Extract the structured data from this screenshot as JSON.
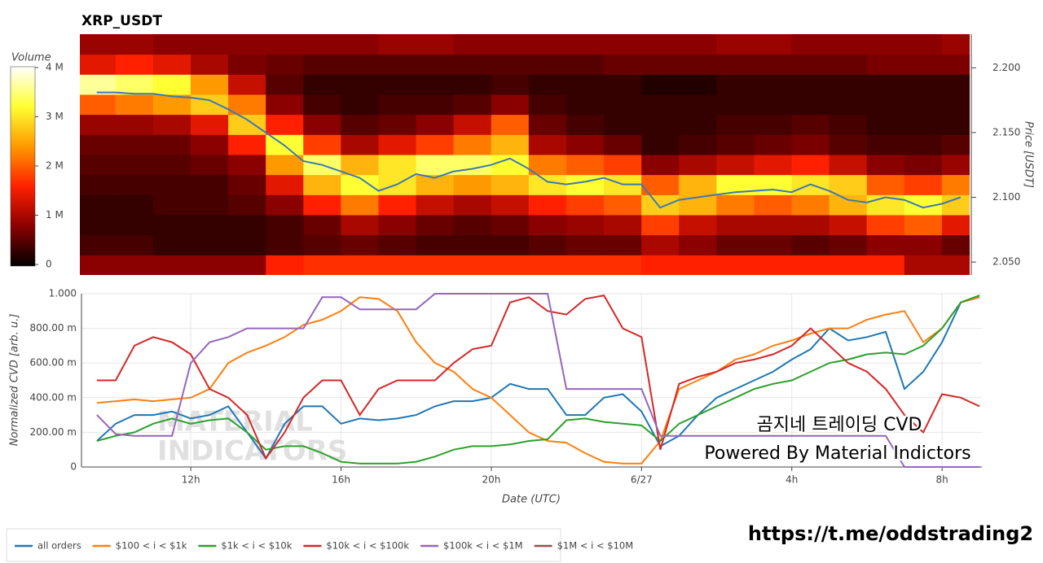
{
  "chart_data": [
    {
      "type": "heatmap",
      "title": "XRP_USDT",
      "x_bins": [
        9,
        10,
        11,
        12,
        13,
        14,
        15,
        16,
        17,
        18,
        19,
        20,
        21,
        22,
        23,
        24,
        25,
        26,
        27,
        28,
        29,
        30,
        31,
        32,
        33
      ],
      "y_bins": [
        2.04,
        2.0555,
        2.071,
        2.0865,
        2.102,
        2.1175,
        2.133,
        2.1485,
        2.164,
        2.1795,
        2.195,
        2.2105,
        2.226
      ],
      "z": [
        [
          0.8,
          0.8,
          0.8,
          0.8,
          0.8,
          1.6,
          1.7,
          1.7,
          1.7,
          1.7,
          1.7,
          1.7,
          1.7,
          1.7,
          1.7,
          1.6,
          1.6,
          1.6,
          1.6,
          1.6,
          1.6,
          1.6,
          1.0,
          1.0
        ],
        [
          0.4,
          0.4,
          0.3,
          0.3,
          0.3,
          0.4,
          0.5,
          0.6,
          0.5,
          0.4,
          0.4,
          0.4,
          0.5,
          0.6,
          0.6,
          1.0,
          0.8,
          0.6,
          0.6,
          0.5,
          0.6,
          0.8,
          0.8,
          0.6
        ],
        [
          0.3,
          0.3,
          0.3,
          0.3,
          0.3,
          0.4,
          0.6,
          1.0,
          0.8,
          0.6,
          0.5,
          0.6,
          0.8,
          0.9,
          1.0,
          1.8,
          1.2,
          1.0,
          1.0,
          1.0,
          1.2,
          1.8,
          2.0,
          1.4
        ],
        [
          0.3,
          0.3,
          0.4,
          0.4,
          0.5,
          0.8,
          1.6,
          2.2,
          1.6,
          1.2,
          1.0,
          1.2,
          1.6,
          1.8,
          2.0,
          2.8,
          2.6,
          2.2,
          2.0,
          2.2,
          2.6,
          3.0,
          3.2,
          2.8
        ],
        [
          0.4,
          0.4,
          0.4,
          0.4,
          0.6,
          1.4,
          2.6,
          3.2,
          3.0,
          2.6,
          2.4,
          2.6,
          3.0,
          3.2,
          3.0,
          2.0,
          2.6,
          3.2,
          3.2,
          3.0,
          2.8,
          2.0,
          1.8,
          2.2
        ],
        [
          0.5,
          0.5,
          0.5,
          0.6,
          0.8,
          2.4,
          3.4,
          2.6,
          3.0,
          3.4,
          3.4,
          3.2,
          2.2,
          2.0,
          1.8,
          0.8,
          1.0,
          1.2,
          1.4,
          1.6,
          1.2,
          0.8,
          0.7,
          0.9
        ],
        [
          0.6,
          0.6,
          0.6,
          0.8,
          1.6,
          3.2,
          1.8,
          1.0,
          1.4,
          1.8,
          2.2,
          2.6,
          1.0,
          0.8,
          0.6,
          0.3,
          0.4,
          0.5,
          0.6,
          0.7,
          0.5,
          0.4,
          0.4,
          0.5
        ],
        [
          0.9,
          0.9,
          1.0,
          1.4,
          2.8,
          1.6,
          0.8,
          0.5,
          0.6,
          0.8,
          1.2,
          2.0,
          0.6,
          0.4,
          0.3,
          0.3,
          0.3,
          0.4,
          0.4,
          0.5,
          0.4,
          0.3,
          0.3,
          0.3
        ],
        [
          2.0,
          2.2,
          2.4,
          2.8,
          2.2,
          0.8,
          0.4,
          0.3,
          0.4,
          0.4,
          0.5,
          0.8,
          0.4,
          0.3,
          0.3,
          0.3,
          0.3,
          0.3,
          0.3,
          0.3,
          0.3,
          0.3,
          0.3,
          0.3
        ],
        [
          3.6,
          3.4,
          3.2,
          2.4,
          1.2,
          0.5,
          0.3,
          0.3,
          0.3,
          0.3,
          0.3,
          0.4,
          0.3,
          0.3,
          0.3,
          0.2,
          0.2,
          0.3,
          0.3,
          0.3,
          0.3,
          0.3,
          0.3,
          0.3
        ],
        [
          1.4,
          1.6,
          1.4,
          1.0,
          0.7,
          0.6,
          0.5,
          0.5,
          0.5,
          0.5,
          0.5,
          0.5,
          0.5,
          0.5,
          0.6,
          0.6,
          0.6,
          0.6,
          0.6,
          0.6,
          0.6,
          0.7,
          0.7,
          0.7
        ],
        [
          0.9,
          0.9,
          0.8,
          0.8,
          0.8,
          0.8,
          0.8,
          0.8,
          0.9,
          0.9,
          0.8,
          0.8,
          0.8,
          0.8,
          0.8,
          0.8,
          0.8,
          0.9,
          0.9,
          0.8,
          0.8,
          0.8,
          0.8,
          0.9
        ]
      ],
      "zlim": [
        0,
        4
      ],
      "zticks": [
        0,
        {
          "value": 1,
          "label": "1 M"
        },
        {
          "value": 2,
          "label": "2 M"
        },
        {
          "value": 3,
          "label": "3 M"
        },
        {
          "value": 4,
          "label": "4 M"
        }
      ],
      "colorbar_title": "Volume",
      "colorscale": [
        "#000000",
        "#8b0000",
        "#ff2000",
        "#ff9900",
        "#ffff33",
        "#ffffff"
      ],
      "xlim": [
        9.05,
        32.74
      ],
      "ylim": [
        2.04,
        2.226
      ],
      "yticks": [
        {
          "value": 2.05,
          "label": "2.050"
        },
        {
          "value": 2.1,
          "label": "2.100"
        },
        {
          "value": 2.15,
          "label": "2.150"
        },
        {
          "value": 2.2,
          "label": "2.200"
        }
      ],
      "ylabel": "Price [USDT]",
      "price_line": {
        "color": "#3a7ab5",
        "x": [
          9.5,
          10,
          10.5,
          11,
          11.5,
          12,
          12.5,
          13,
          13.5,
          14,
          14.5,
          15,
          15.5,
          16,
          16.5,
          17,
          17.5,
          18,
          18.5,
          19,
          19.5,
          20,
          20.5,
          21,
          21.5,
          22,
          22.5,
          23,
          23.5,
          24,
          24.5,
          25,
          25.5,
          26,
          26.5,
          27,
          27.5,
          28,
          28.5,
          29,
          29.5,
          30,
          30.5,
          31,
          31.5,
          32,
          32.5
        ],
        "values": [
          2.181,
          2.181,
          2.18,
          2.18,
          2.178,
          2.177,
          2.175,
          2.168,
          2.16,
          2.15,
          2.14,
          2.128,
          2.125,
          2.12,
          2.115,
          2.105,
          2.11,
          2.118,
          2.115,
          2.12,
          2.122,
          2.125,
          2.13,
          2.122,
          2.112,
          2.11,
          2.112,
          2.115,
          2.11,
          2.11,
          2.092,
          2.098,
          2.1,
          2.102,
          2.104,
          2.105,
          2.106,
          2.104,
          2.11,
          2.105,
          2.098,
          2.096,
          2.1,
          2.098,
          2.092,
          2.095,
          2.1
        ]
      }
    },
    {
      "type": "line",
      "xlim": [
        9.09,
        33.06
      ],
      "xticks": [
        {
          "value": 12,
          "label": "12h"
        },
        {
          "value": 16,
          "label": "16h"
        },
        {
          "value": 20,
          "label": "20h"
        },
        {
          "value": 24,
          "label": "6/27"
        },
        {
          "value": 28,
          "label": "4h"
        },
        {
          "value": 32,
          "label": "8h"
        }
      ],
      "xlabel": "Date (UTC)",
      "ylim": [
        0,
        1
      ],
      "yticks": [
        0,
        {
          "value": 0.2,
          "label": "200.00 m"
        },
        {
          "value": 0.4,
          "label": "400.00 m"
        },
        {
          "value": 0.6,
          "label": "600.00 m"
        },
        {
          "value": 0.8,
          "label": "800.00 m"
        },
        {
          "value": 1,
          "label": "1.000"
        }
      ],
      "ylabel": "Normalized CVD [arb. u.]",
      "grid": true,
      "legend": "bottom",
      "x": [
        9.5,
        10,
        10.5,
        11,
        11.5,
        12,
        12.5,
        13,
        13.5,
        14,
        14.5,
        15,
        15.5,
        16,
        16.5,
        17,
        17.5,
        18,
        18.5,
        19,
        19.5,
        20,
        20.5,
        21,
        21.5,
        22,
        22.5,
        23,
        23.5,
        24,
        24.5,
        25,
        25.5,
        26,
        26.5,
        27,
        27.5,
        28,
        28.5,
        29,
        29.5,
        30,
        30.5,
        31,
        31.5,
        32,
        32.5,
        33
      ],
      "series": [
        {
          "name": "all orders",
          "color": "#1f77b4",
          "values": [
            0.15,
            0.25,
            0.3,
            0.3,
            0.32,
            0.28,
            0.3,
            0.35,
            0.2,
            0.05,
            0.25,
            0.35,
            0.35,
            0.25,
            0.28,
            0.27,
            0.28,
            0.3,
            0.35,
            0.38,
            0.38,
            0.4,
            0.48,
            0.45,
            0.45,
            0.3,
            0.3,
            0.4,
            0.42,
            0.32,
            0.12,
            0.18,
            0.3,
            0.4,
            0.45,
            0.5,
            0.55,
            0.62,
            0.68,
            0.8,
            0.73,
            0.75,
            0.78,
            0.45,
            0.55,
            0.72,
            0.95,
            0.98
          ]
        },
        {
          "name": "$100 < i < $1k",
          "color": "#ff7f0e",
          "values": [
            0.37,
            0.38,
            0.39,
            0.38,
            0.39,
            0.4,
            0.45,
            0.6,
            0.66,
            0.7,
            0.75,
            0.82,
            0.85,
            0.9,
            0.98,
            0.97,
            0.9,
            0.72,
            0.6,
            0.55,
            0.45,
            0.4,
            0.3,
            0.2,
            0.15,
            0.14,
            0.08,
            0.03,
            0.02,
            0.02,
            0.15,
            0.45,
            0.5,
            0.55,
            0.62,
            0.65,
            0.7,
            0.73,
            0.77,
            0.8,
            0.8,
            0.85,
            0.88,
            0.9,
            0.72,
            0.8,
            0.95,
            0.98
          ]
        },
        {
          "name": "$1k < i < $10k",
          "color": "#2ca02c",
          "values": [
            0.15,
            0.18,
            0.2,
            0.25,
            0.28,
            0.25,
            0.27,
            0.28,
            0.2,
            0.1,
            0.12,
            0.12,
            0.08,
            0.03,
            0.02,
            0.02,
            0.02,
            0.03,
            0.06,
            0.1,
            0.12,
            0.12,
            0.13,
            0.15,
            0.16,
            0.27,
            0.28,
            0.26,
            0.25,
            0.24,
            0.15,
            0.25,
            0.3,
            0.35,
            0.4,
            0.45,
            0.48,
            0.5,
            0.55,
            0.6,
            0.62,
            0.65,
            0.66,
            0.65,
            0.7,
            0.8,
            0.95,
            0.99
          ]
        },
        {
          "name": "$10k < i < $100k",
          "color": "#d62728",
          "values": [
            0.5,
            0.5,
            0.7,
            0.75,
            0.72,
            0.65,
            0.45,
            0.4,
            0.3,
            0.05,
            0.2,
            0.4,
            0.5,
            0.5,
            0.3,
            0.45,
            0.5,
            0.5,
            0.5,
            0.6,
            0.68,
            0.7,
            0.95,
            0.98,
            0.9,
            0.88,
            0.97,
            0.99,
            0.8,
            0.75,
            0.1,
            0.48,
            0.52,
            0.55,
            0.6,
            0.62,
            0.65,
            0.7,
            0.8,
            0.7,
            0.6,
            0.55,
            0.45,
            0.3,
            0.2,
            0.42,
            0.4,
            0.35
          ]
        },
        {
          "name": "$100k < i < $1M",
          "color": "#9467bd",
          "values": [
            0.3,
            0.19,
            0.18,
            0.18,
            0.18,
            0.6,
            0.72,
            0.75,
            0.8,
            0.8,
            0.8,
            0.8,
            0.98,
            0.98,
            0.91,
            0.91,
            0.91,
            0.91,
            1,
            1,
            1,
            1,
            1,
            1,
            1,
            0.45,
            0.45,
            0.45,
            0.45,
            0.45,
            0.18,
            0.18,
            0.18,
            0.18,
            0.18,
            0.18,
            0.18,
            0.18,
            0.18,
            0.18,
            0.18,
            0.18,
            0.18,
            0,
            0,
            0,
            0,
            0
          ]
        },
        {
          "name": "$1M < i < $10M",
          "color": "#8c564b",
          "values": [
            null,
            null,
            null,
            null,
            null,
            null,
            null,
            null,
            null,
            null,
            null,
            null,
            null,
            null,
            null,
            null,
            null,
            null,
            null,
            null,
            null,
            null,
            null,
            null,
            null,
            null,
            null,
            null,
            null,
            null,
            null,
            null,
            null,
            null,
            null,
            null,
            null,
            null,
            null,
            null,
            null,
            null,
            null,
            null,
            null,
            null,
            null,
            null
          ]
        }
      ],
      "watermark": [
        "MATERIAL",
        "INDICATORS"
      ],
      "annotations": [
        "곰지네 트레이딩 CVD",
        "Powered By Material Indictors",
        "https://t.me/oddstrading2"
      ]
    }
  ]
}
